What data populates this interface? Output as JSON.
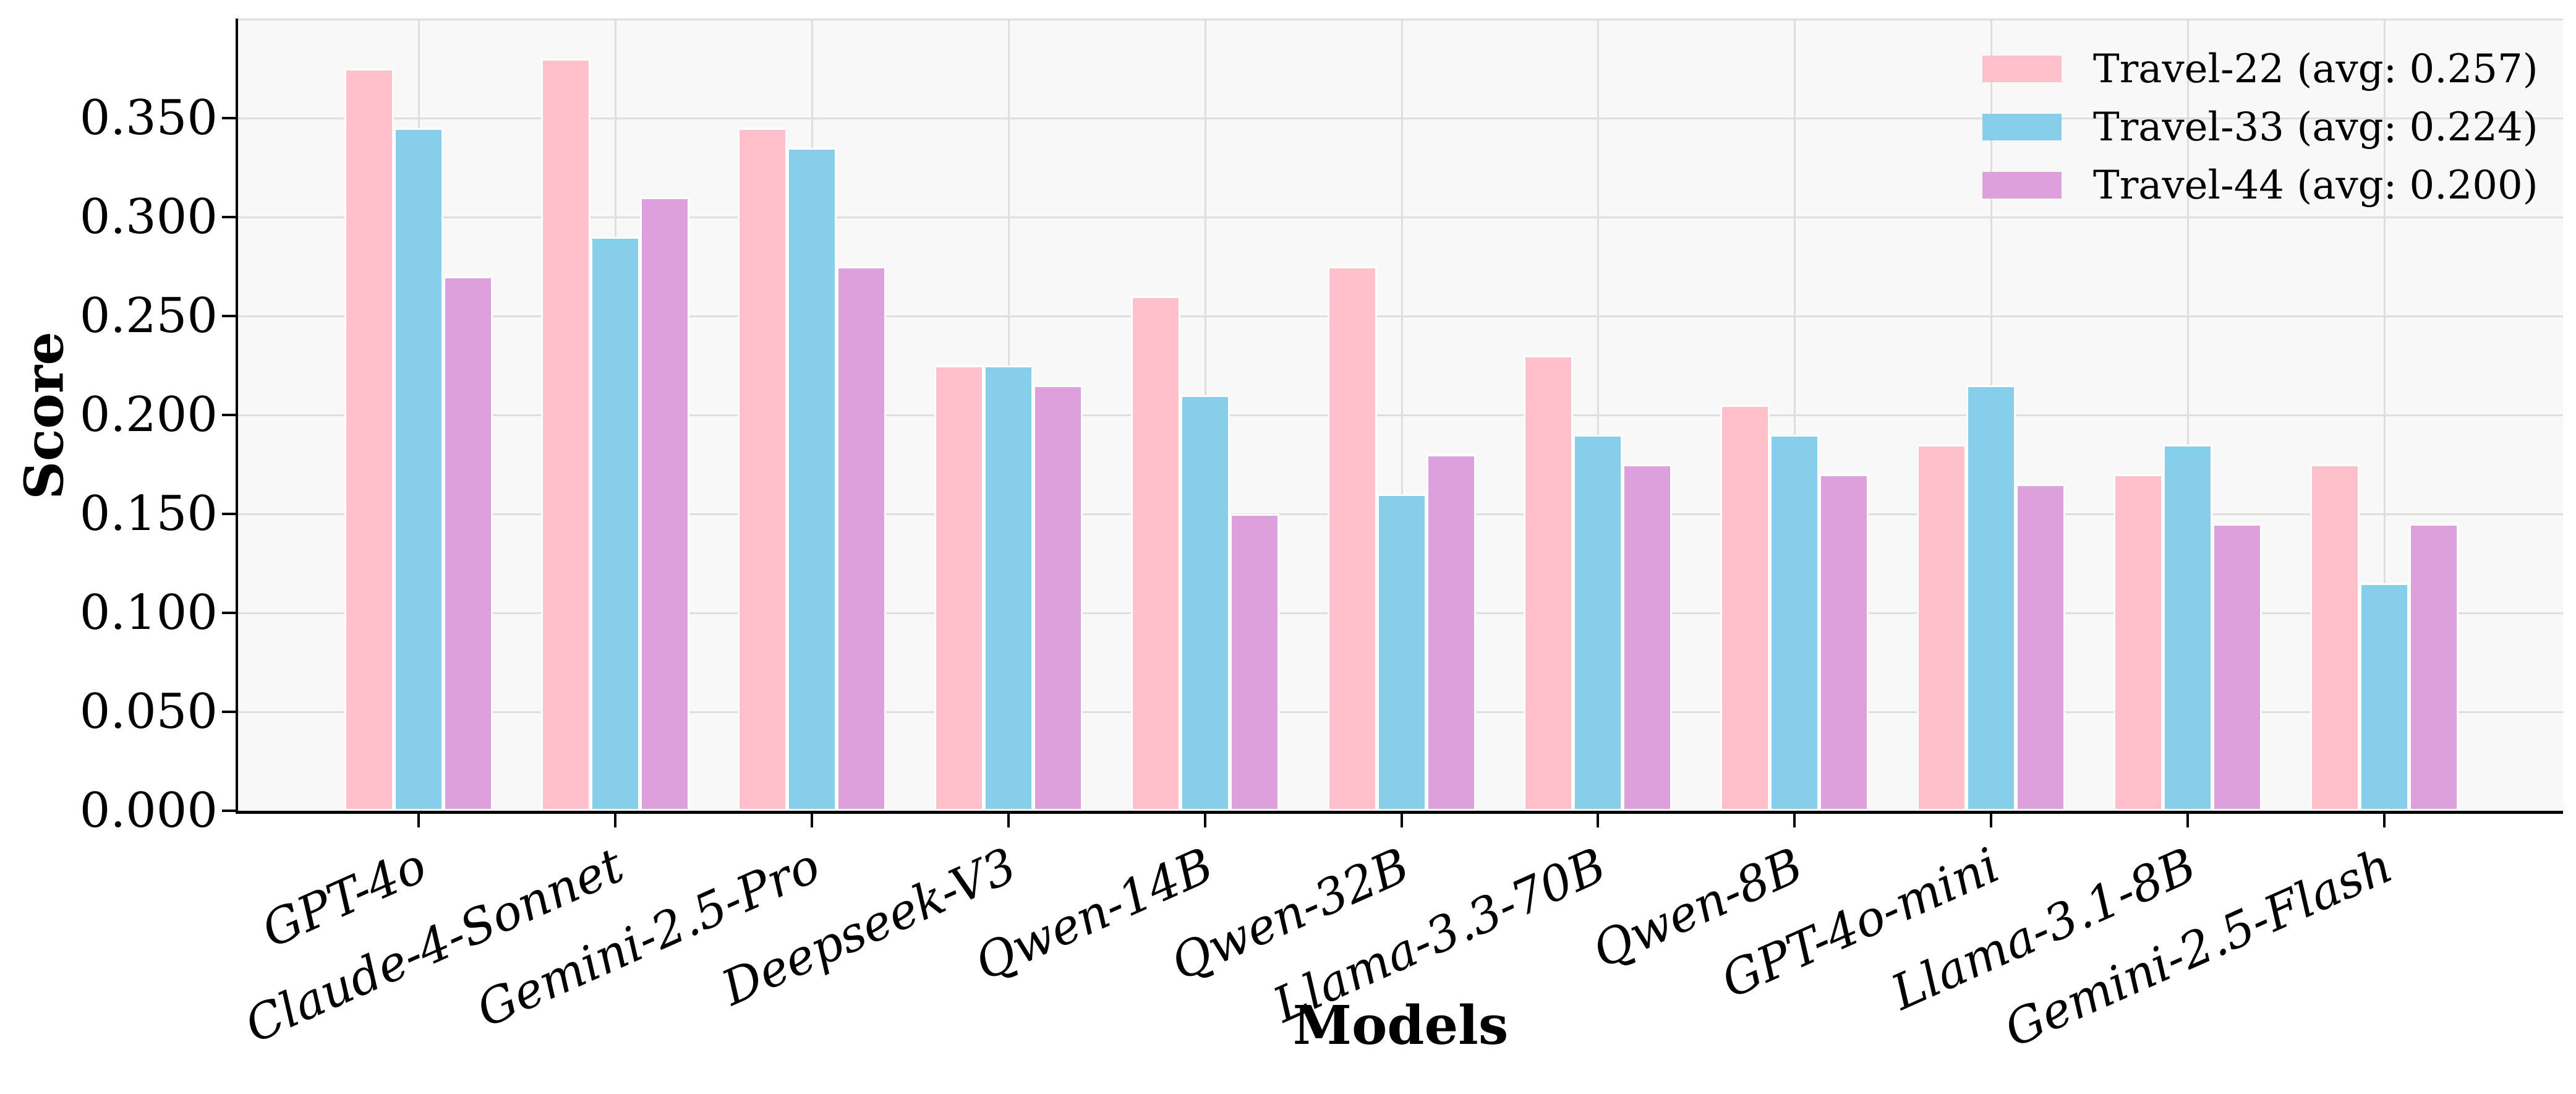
{
  "figure": {
    "background": "#ffffff",
    "plot_background": "#f8f8f8",
    "grid_color": "#dedede",
    "axis_color": "#000000"
  },
  "chart_data": {
    "type": "bar",
    "title": "",
    "xlabel": "Models",
    "ylabel": "Score",
    "ylim": [
      0,
      0.4
    ],
    "grid": true,
    "legend_position": "upper-right",
    "ytick_labels": [
      "0.000",
      "0.050",
      "0.100",
      "0.150",
      "0.200",
      "0.250",
      "0.300",
      "0.350"
    ],
    "categories": [
      "GPT-4o",
      "Claude-4-Sonnet",
      "Gemini-2.5-Pro",
      "Deepseek-V3",
      "Qwen-14B",
      "Qwen-32B",
      "Llama-3.3-70B",
      "Qwen-8B",
      "GPT-4o-mini",
      "Llama-3.1-8B",
      "Gemini-2.5-Flash"
    ],
    "series": [
      {
        "name": "Travel-22",
        "avg": "0.257",
        "legend_label": "Travel-22 (avg: 0.257)",
        "color": "#FFC0CB",
        "values": [
          0.375,
          0.38,
          0.345,
          0.225,
          0.26,
          0.275,
          0.23,
          0.205,
          0.185,
          0.17,
          0.175
        ]
      },
      {
        "name": "Travel-33",
        "avg": "0.224",
        "legend_label": "Travel-33 (avg: 0.224)",
        "color": "#87CEEB",
        "values": [
          0.345,
          0.29,
          0.335,
          0.225,
          0.21,
          0.16,
          0.19,
          0.19,
          0.215,
          0.185,
          0.115
        ]
      },
      {
        "name": "Travel-44",
        "avg": "0.200",
        "legend_label": "Travel-44 (avg: 0.200)",
        "color": "#DDA0DD",
        "values": [
          0.27,
          0.31,
          0.275,
          0.215,
          0.15,
          0.18,
          0.175,
          0.17,
          0.165,
          0.145,
          0.145
        ]
      }
    ]
  }
}
